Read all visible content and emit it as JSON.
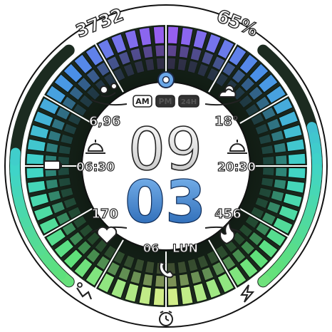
{
  "top": {
    "steps": "3732",
    "battery": "65%"
  },
  "ampm": {
    "am": "AM",
    "pm": "PM",
    "h24": "24H",
    "active": "AM"
  },
  "left": {
    "distance": "6,96",
    "sunrise": "06:30",
    "heart_rate": "170"
  },
  "right": {
    "temperature": "18°",
    "sunset": "20:30",
    "calories": "456"
  },
  "time": {
    "hours": "09",
    "minutes": "03"
  },
  "date": {
    "day": "06",
    "weekday": "LUN"
  },
  "icons": {
    "top_center": "settings-icon",
    "upper_left": "route-distance-icon",
    "upper_right": "weather-icon",
    "mid_left": "battery-icon",
    "sunrise": "sunrise-icon",
    "sunset": "sunset-icon",
    "heart": "heart-icon",
    "flame": "flame-icon",
    "phone": "phone-icon",
    "bottom_left": "workout-icon",
    "bottom_right": "lightning-icon",
    "bottom": "alarm-icon"
  },
  "colors": {
    "background": "#ffffff",
    "dial_dark": "#152418",
    "hours": "#e6e6e6",
    "minutes": "#2f7fd3",
    "segment_top": "#d9ee8a",
    "segment_green": "#5fe07a",
    "segment_teal": "#3fd4c8",
    "segment_blue": "#4a8fe8",
    "segment_purple": "#9b5cf0"
  },
  "gauges": {
    "steps_progress": 0.55,
    "battery_level": 0.65
  }
}
